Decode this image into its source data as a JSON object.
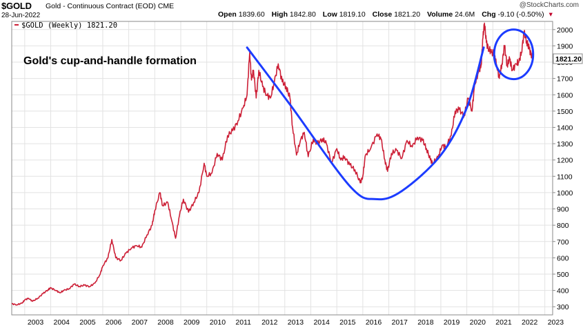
{
  "header": {
    "ticker": "$GOLD",
    "description": "Gold - Continuous Contract (EOD)",
    "exchange": "CME",
    "date": "28-Jun-2022",
    "credit": "@StockCharts.com",
    "open_label": "Open",
    "open": "1839.60",
    "high_label": "High",
    "high": "1842.80",
    "low_label": "Low",
    "low": "1819.10",
    "close_label": "Close",
    "close": "1821.20",
    "volume_label": "Volume",
    "volume": "24.6M",
    "chg_label": "Chg",
    "chg": "-9.10 (-0.50%)"
  },
  "colors": {
    "price_line": "#cc1f36",
    "overlay": "#1c3cff",
    "grid": "#e2e2e2",
    "down_arrow": "#c0002a"
  },
  "chart_data": {
    "type": "line",
    "title": "Gold's cup-and-handle formation",
    "legend": "$GOLD (Weekly) 1821.20",
    "last_value_label": "1821.20",
    "xlabel": "",
    "ylabel": "",
    "ylim": [
      250,
      2050
    ],
    "xlim": [
      2002.5,
      2023.3
    ],
    "yticks": [
      300,
      400,
      500,
      600,
      700,
      800,
      900,
      1000,
      1100,
      1200,
      1300,
      1400,
      1500,
      1600,
      1700,
      1800,
      1900,
      2000
    ],
    "xticks": [
      "2003",
      "2004",
      "2005",
      "2006",
      "2007",
      "2008",
      "2009",
      "2010",
      "2011",
      "2012",
      "2013",
      "2014",
      "2015",
      "2016",
      "2017",
      "2018",
      "2019",
      "2020",
      "2021",
      "2022",
      "2023"
    ],
    "grid": true,
    "y_axis_side": "right",
    "legend_placement": "top-left",
    "series": [
      {
        "name": "$GOLD (Weekly)",
        "points": [
          [
            2002.5,
            318
          ],
          [
            2002.7,
            312
          ],
          [
            2002.9,
            322
          ],
          [
            2003.0,
            342
          ],
          [
            2003.15,
            352
          ],
          [
            2003.3,
            333
          ],
          [
            2003.5,
            352
          ],
          [
            2003.7,
            380
          ],
          [
            2003.9,
            405
          ],
          [
            2004.0,
            415
          ],
          [
            2004.2,
            400
          ],
          [
            2004.35,
            385
          ],
          [
            2004.5,
            400
          ],
          [
            2004.7,
            410
          ],
          [
            2004.9,
            438
          ],
          [
            2005.1,
            425
          ],
          [
            2005.3,
            432
          ],
          [
            2005.5,
            424
          ],
          [
            2005.7,
            445
          ],
          [
            2005.9,
            500
          ],
          [
            2006.0,
            550
          ],
          [
            2006.2,
            600
          ],
          [
            2006.35,
            712
          ],
          [
            2006.5,
            600
          ],
          [
            2006.7,
            585
          ],
          [
            2006.9,
            630
          ],
          [
            2007.1,
            660
          ],
          [
            2007.3,
            675
          ],
          [
            2007.5,
            665
          ],
          [
            2007.7,
            740
          ],
          [
            2007.9,
            800
          ],
          [
            2008.0,
            890
          ],
          [
            2008.2,
            1000
          ],
          [
            2008.3,
            920
          ],
          [
            2008.5,
            940
          ],
          [
            2008.65,
            830
          ],
          [
            2008.8,
            720
          ],
          [
            2008.95,
            860
          ],
          [
            2009.1,
            960
          ],
          [
            2009.3,
            880
          ],
          [
            2009.5,
            940
          ],
          [
            2009.7,
            1000
          ],
          [
            2009.9,
            1180
          ],
          [
            2010.0,
            1100
          ],
          [
            2010.2,
            1120
          ],
          [
            2010.4,
            1240
          ],
          [
            2010.6,
            1200
          ],
          [
            2010.8,
            1350
          ],
          [
            2011.0,
            1380
          ],
          [
            2011.2,
            1440
          ],
          [
            2011.4,
            1520
          ],
          [
            2011.55,
            1600
          ],
          [
            2011.65,
            1860
          ],
          [
            2011.72,
            1690
          ],
          [
            2011.8,
            1750
          ],
          [
            2011.9,
            1580
          ],
          [
            2012.0,
            1750
          ],
          [
            2012.15,
            1650
          ],
          [
            2012.3,
            1600
          ],
          [
            2012.45,
            1580
          ],
          [
            2012.6,
            1680
          ],
          [
            2012.75,
            1790
          ],
          [
            2012.9,
            1680
          ],
          [
            2013.05,
            1650
          ],
          [
            2013.2,
            1580
          ],
          [
            2013.3,
            1400
          ],
          [
            2013.45,
            1230
          ],
          [
            2013.6,
            1320
          ],
          [
            2013.75,
            1370
          ],
          [
            2013.9,
            1220
          ],
          [
            2014.1,
            1330
          ],
          [
            2014.25,
            1300
          ],
          [
            2014.45,
            1330
          ],
          [
            2014.6,
            1300
          ],
          [
            2014.8,
            1180
          ],
          [
            2015.0,
            1270
          ],
          [
            2015.15,
            1200
          ],
          [
            2015.3,
            1220
          ],
          [
            2015.5,
            1170
          ],
          [
            2015.7,
            1140
          ],
          [
            2015.9,
            1060
          ],
          [
            2016.0,
            1100
          ],
          [
            2016.1,
            1230
          ],
          [
            2016.3,
            1270
          ],
          [
            2016.55,
            1360
          ],
          [
            2016.7,
            1330
          ],
          [
            2016.85,
            1200
          ],
          [
            2016.95,
            1130
          ],
          [
            2017.1,
            1240
          ],
          [
            2017.3,
            1260
          ],
          [
            2017.5,
            1210
          ],
          [
            2017.7,
            1320
          ],
          [
            2017.9,
            1280
          ],
          [
            2018.1,
            1340
          ],
          [
            2018.3,
            1320
          ],
          [
            2018.45,
            1270
          ],
          [
            2018.6,
            1200
          ],
          [
            2018.7,
            1180
          ],
          [
            2018.9,
            1220
          ],
          [
            2019.05,
            1290
          ],
          [
            2019.2,
            1280
          ],
          [
            2019.4,
            1350
          ],
          [
            2019.55,
            1500
          ],
          [
            2019.7,
            1510
          ],
          [
            2019.9,
            1470
          ],
          [
            2020.05,
            1580
          ],
          [
            2020.2,
            1500
          ],
          [
            2020.3,
            1660
          ],
          [
            2020.45,
            1740
          ],
          [
            2020.55,
            1780
          ],
          [
            2020.62,
            1950
          ],
          [
            2020.68,
            2040
          ],
          [
            2020.75,
            1920
          ],
          [
            2020.85,
            1880
          ],
          [
            2020.95,
            1860
          ],
          [
            2021.05,
            1850
          ],
          [
            2021.15,
            1780
          ],
          [
            2021.25,
            1700
          ],
          [
            2021.35,
            1790
          ],
          [
            2021.45,
            1900
          ],
          [
            2021.55,
            1780
          ],
          [
            2021.65,
            1820
          ],
          [
            2021.75,
            1750
          ],
          [
            2021.9,
            1790
          ],
          [
            2022.0,
            1800
          ],
          [
            2022.1,
            1860
          ],
          [
            2022.2,
            1980
          ],
          [
            2022.3,
            1930
          ],
          [
            2022.4,
            1880
          ],
          [
            2022.5,
            1840
          ],
          [
            2022.55,
            1821.2
          ]
        ]
      }
    ],
    "annotations": {
      "cup_curve": [
        [
          2011.55,
          1890
        ],
        [
          2013.2,
          1540
        ],
        [
          2015.5,
          1040
        ],
        [
          2016.5,
          960
        ],
        [
          2017.5,
          1010
        ],
        [
          2019.0,
          1230
        ],
        [
          2020.0,
          1520
        ],
        [
          2020.65,
          1890
        ]
      ],
      "handle_circle": {
        "center": [
          2021.8,
          1848
        ],
        "radius_years": 0.75,
        "radius_value": 152
      }
    }
  }
}
